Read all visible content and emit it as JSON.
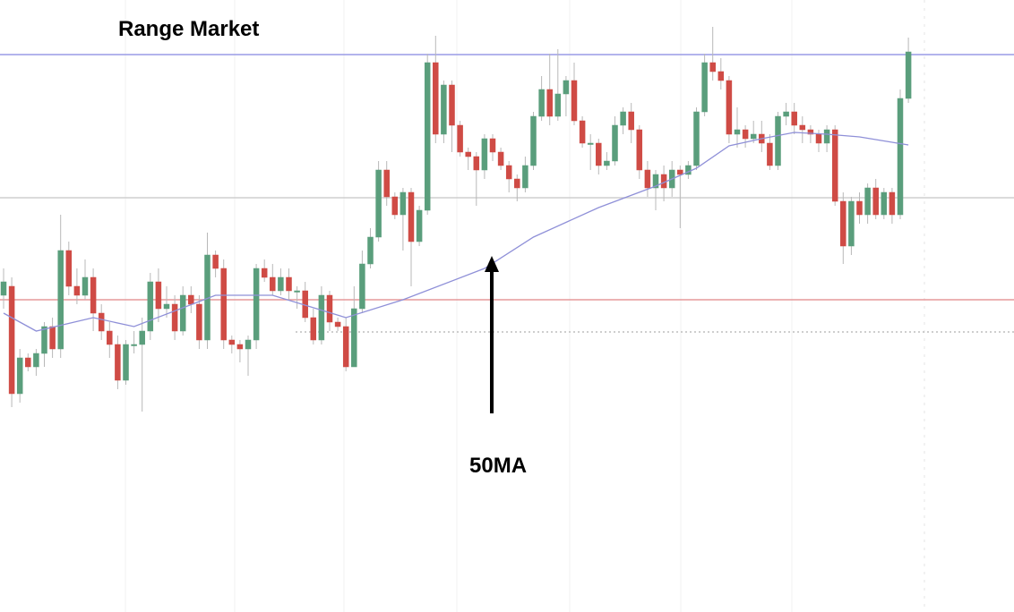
{
  "chart_data": {
    "type": "candlestick",
    "title": "Range Market",
    "annotation": "50MA",
    "ylim": [
      0,
      684
    ],
    "up_color": "#5a9e7c",
    "down_color": "#cf4b45",
    "candles": [
      [
        354,
        384,
        339,
        369
      ],
      [
        364,
        374,
        229,
        244
      ],
      [
        244,
        294,
        234,
        284
      ],
      [
        284,
        289,
        269,
        274
      ],
      [
        274,
        294,
        264,
        289
      ],
      [
        289,
        324,
        274,
        319
      ],
      [
        319,
        329,
        284,
        294
      ],
      [
        294,
        444,
        284,
        404
      ],
      [
        404,
        414,
        354,
        364
      ],
      [
        364,
        384,
        344,
        354
      ],
      [
        354,
        394,
        349,
        374
      ],
      [
        374,
        384,
        314,
        334
      ],
      [
        334,
        344,
        304,
        314
      ],
      [
        314,
        324,
        284,
        299
      ],
      [
        299,
        309,
        249,
        259
      ],
      [
        259,
        304,
        254,
        299
      ],
      [
        299,
        314,
        289,
        299
      ],
      [
        299,
        329,
        224,
        314
      ],
      [
        314,
        379,
        304,
        369
      ],
      [
        369,
        384,
        324,
        339
      ],
      [
        339,
        364,
        329,
        344
      ],
      [
        344,
        354,
        304,
        314
      ],
      [
        314,
        364,
        309,
        354
      ],
      [
        354,
        364,
        334,
        344
      ],
      [
        344,
        354,
        294,
        304
      ],
      [
        304,
        424,
        294,
        399
      ],
      [
        399,
        404,
        374,
        384
      ],
      [
        384,
        394,
        294,
        304
      ],
      [
        304,
        309,
        289,
        299
      ],
      [
        299,
        304,
        279,
        294
      ],
      [
        294,
        309,
        264,
        304
      ],
      [
        304,
        389,
        294,
        384
      ],
      [
        384,
        394,
        369,
        374
      ],
      [
        374,
        389,
        354,
        359
      ],
      [
        359,
        384,
        354,
        374
      ],
      [
        374,
        384,
        349,
        359
      ],
      [
        359,
        364,
        339,
        359
      ],
      [
        359,
        369,
        324,
        329
      ],
      [
        329,
        339,
        299,
        304
      ],
      [
        304,
        364,
        299,
        354
      ],
      [
        354,
        359,
        314,
        324
      ],
      [
        324,
        329,
        314,
        319
      ],
      [
        319,
        329,
        269,
        274
      ],
      [
        274,
        364,
        274,
        339
      ],
      [
        339,
        404,
        334,
        389
      ],
      [
        389,
        429,
        384,
        419
      ],
      [
        419,
        504,
        414,
        494
      ],
      [
        494,
        504,
        454,
        464
      ],
      [
        464,
        469,
        439,
        444
      ],
      [
        444,
        474,
        404,
        469
      ],
      [
        469,
        474,
        364,
        414
      ],
      [
        414,
        454,
        409,
        449
      ],
      [
        449,
        624,
        444,
        614
      ],
      [
        614,
        644,
        524,
        534
      ],
      [
        534,
        594,
        524,
        589
      ],
      [
        589,
        594,
        514,
        544
      ],
      [
        544,
        549,
        509,
        514
      ],
      [
        514,
        519,
        494,
        509
      ],
      [
        509,
        514,
        454,
        494
      ],
      [
        494,
        534,
        484,
        529
      ],
      [
        529,
        534,
        504,
        514
      ],
      [
        514,
        519,
        494,
        499
      ],
      [
        499,
        504,
        469,
        484
      ],
      [
        484,
        489,
        459,
        474
      ],
      [
        474,
        509,
        469,
        499
      ],
      [
        499,
        559,
        494,
        554
      ],
      [
        554,
        599,
        549,
        584
      ],
      [
        584,
        624,
        544,
        554
      ],
      [
        554,
        629,
        549,
        579
      ],
      [
        579,
        599,
        554,
        594
      ],
      [
        594,
        614,
        544,
        549
      ],
      [
        549,
        554,
        519,
        524
      ],
      [
        524,
        534,
        494,
        524
      ],
      [
        524,
        529,
        489,
        499
      ],
      [
        499,
        514,
        494,
        504
      ],
      [
        504,
        554,
        499,
        544
      ],
      [
        544,
        564,
        534,
        559
      ],
      [
        559,
        569,
        524,
        539
      ],
      [
        539,
        544,
        484,
        494
      ],
      [
        494,
        504,
        464,
        474
      ],
      [
        474,
        494,
        449,
        489
      ],
      [
        489,
        499,
        459,
        474
      ],
      [
        474,
        504,
        464,
        494
      ],
      [
        494,
        499,
        429,
        489
      ],
      [
        489,
        504,
        484,
        499
      ],
      [
        499,
        564,
        494,
        559
      ],
      [
        559,
        624,
        554,
        614
      ],
      [
        614,
        654,
        594,
        604
      ],
      [
        604,
        619,
        584,
        594
      ],
      [
        594,
        599,
        524,
        534
      ],
      [
        534,
        564,
        519,
        539
      ],
      [
        539,
        544,
        519,
        529
      ],
      [
        529,
        549,
        524,
        534
      ],
      [
        534,
        549,
        514,
        524
      ],
      [
        524,
        534,
        494,
        499
      ],
      [
        499,
        559,
        494,
        554
      ],
      [
        554,
        569,
        544,
        559
      ],
      [
        559,
        569,
        534,
        544
      ],
      [
        544,
        554,
        524,
        539
      ],
      [
        539,
        544,
        524,
        534
      ],
      [
        534,
        539,
        514,
        524
      ],
      [
        524,
        544,
        514,
        539
      ],
      [
        539,
        544,
        454,
        459
      ],
      [
        459,
        469,
        389,
        409
      ],
      [
        409,
        464,
        399,
        459
      ],
      [
        459,
        469,
        434,
        444
      ],
      [
        444,
        479,
        434,
        474
      ],
      [
        474,
        484,
        439,
        444
      ],
      [
        444,
        474,
        439,
        469
      ],
      [
        469,
        474,
        434,
        444
      ],
      [
        444,
        584,
        439,
        574
      ],
      [
        574,
        642,
        569,
        626
      ]
    ],
    "ma": {
      "color": "#8f90d8",
      "x": [
        0,
        4,
        11,
        16,
        26,
        33,
        42,
        49,
        59,
        65,
        73,
        80,
        85,
        89,
        93,
        97,
        101,
        105,
        111
      ],
      "values": [
        334,
        314,
        329,
        319,
        354,
        354,
        329,
        349,
        384,
        419,
        452,
        476,
        496,
        521,
        529,
        536,
        534,
        531,
        522
      ]
    },
    "levels": [
      {
        "value": 623,
        "color": "#9a9ce6",
        "style": "solid"
      },
      {
        "value": 463,
        "color": "#cfcfcf",
        "style": "solid"
      },
      {
        "value": 349,
        "color": "#e6989a",
        "style": "solid"
      },
      {
        "value": 313,
        "color": "#bdbdbd",
        "style": "dotted"
      }
    ]
  }
}
